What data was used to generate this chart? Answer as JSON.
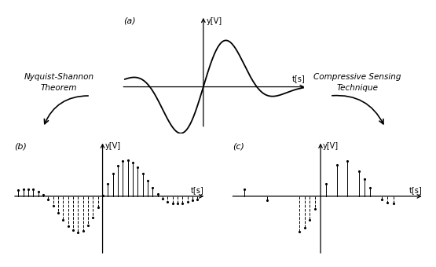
{
  "bg_color": "#ffffff",
  "label_a": "(a)",
  "label_b": "(b)",
  "label_c": "(c)",
  "nyquist_text": "Nyquist-Shannon\nTheorem",
  "compressive_text": "Compressive Sensing\nTechnique",
  "ylabel_a": "y[V]",
  "xlabel_a": "t[s]",
  "ylabel_b": "y[V]",
  "xlabel_b": "t[s]",
  "ylabel_c": "y[V]",
  "xlabel_c": "t[s]",
  "signal_color": "#000000",
  "stem_color": "#000000",
  "axis_color": "#000000",
  "arrow_color": "#000000"
}
